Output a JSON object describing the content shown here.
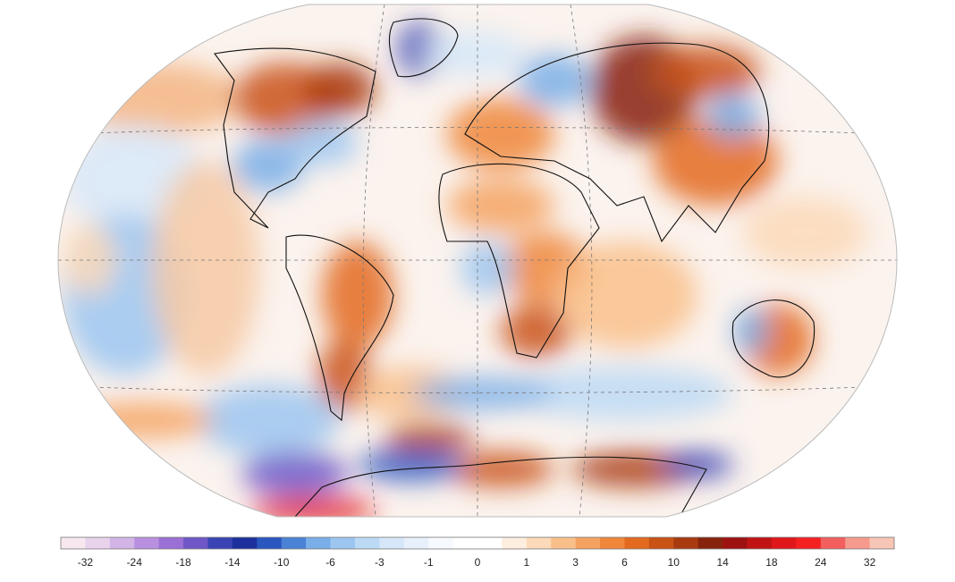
{
  "colorbar": {
    "labels": [
      -32,
      -24,
      -18,
      -14,
      -10,
      -6,
      -3,
      -1,
      0,
      1,
      3,
      6,
      10,
      14,
      18,
      24,
      32
    ],
    "colors": [
      "#f7e8f0",
      "#e8d2ec",
      "#d2b4e6",
      "#b890df",
      "#9a6fd6",
      "#6f57c8",
      "#3a43b4",
      "#1d2f9c",
      "#2a56c0",
      "#4a82d6",
      "#79aee8",
      "#9cc6f0",
      "#bcd9f5",
      "#d5e7f8",
      "#e8f1fb",
      "#f6f9fd",
      "#ffffff",
      "#ffffff",
      "#fdeee0",
      "#fcd9b8",
      "#f9bf8a",
      "#f5a261",
      "#ef8639",
      "#e36a1e",
      "#c95215",
      "#a93a10",
      "#87220c",
      "#9e1111",
      "#c01414",
      "#e0171a",
      "#f52020",
      "#f35e5e",
      "#f59a8c",
      "#f8c6b6"
    ]
  }
}
